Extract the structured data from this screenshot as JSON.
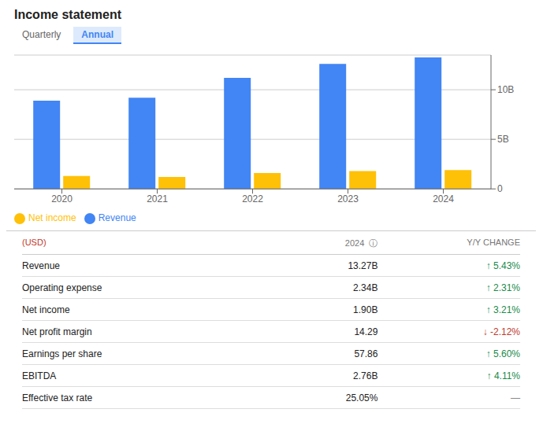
{
  "chart_data": {
    "type": "bar",
    "title": "Income statement",
    "annotations": [
      "Quarterly",
      "Annual"
    ],
    "categories": [
      "2020",
      "2021",
      "2022",
      "2023",
      "2024"
    ],
    "series": [
      {
        "name": "Revenue",
        "color": "#4285F4",
        "values": [
          8.9,
          9.2,
          11.2,
          12.6,
          13.27
        ]
      },
      {
        "name": "Net income",
        "color": "#FFC107",
        "values": [
          1.3,
          1.2,
          1.6,
          1.8,
          1.9
        ]
      }
    ],
    "ylim": [
      0,
      13.5
    ],
    "yticks": [
      0,
      {
        "value": 5,
        "label": "5B"
      },
      {
        "value": 10,
        "label": "10B"
      }
    ],
    "grid": true,
    "legend": "lower left",
    "table": {
      "header": [
        "(USD)",
        "2024  ⓘ",
        "Y/Y CHANGE"
      ],
      "rows": [
        {
          "label": "Revenue",
          "value": "13.27B",
          "change": "↑ 5.43%",
          "color": "#1a8a4a"
        },
        {
          "label": "Operating expense",
          "value": "2.34B",
          "change": "↑ 2.31%",
          "color": "#1a8a4a"
        },
        {
          "label": "Net income",
          "value": "1.90B",
          "change": "↑ 3.21%",
          "color": "#1a8a4a"
        },
        {
          "label": "Net profit margin",
          "value": "14.29",
          "change": "↓ -2.12%",
          "color": "#c0392b"
        },
        {
          "label": "Earnings per share",
          "value": "57.86",
          "change": "↑ 5.60%",
          "color": "#1a8a4a"
        },
        {
          "label": "EBITDA",
          "value": "2.76B",
          "change": "↑ 4.11%",
          "color": "#1a8a4a"
        },
        {
          "label": "Effective tax rate",
          "value": "25.05%",
          "change": "—",
          "color": "#888888"
        }
      ]
    }
  }
}
